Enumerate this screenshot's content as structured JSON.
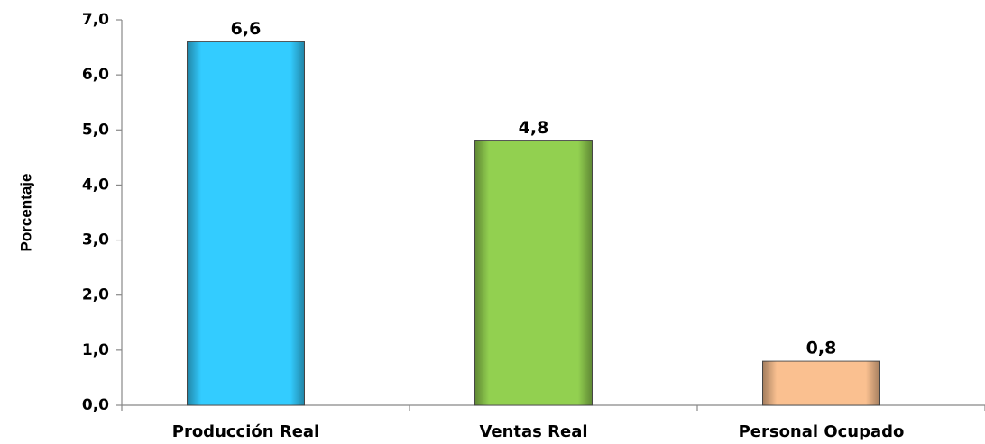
{
  "chart_data": {
    "type": "bar",
    "y_label": "Porcentaje",
    "categories": [
      "Producción Real",
      "Ventas Real",
      "Personal Ocupado"
    ],
    "values": [
      6.6,
      4.8,
      0.8
    ],
    "value_labels": [
      "6,6",
      "4,8",
      "0,8"
    ],
    "colors": [
      "#33ccff",
      "#92d050",
      "#fac090"
    ],
    "ylim": [
      0,
      7
    ],
    "yticks": [
      {
        "value": 0,
        "label": "0,0"
      },
      {
        "value": 1,
        "label": "1,0"
      },
      {
        "value": 2,
        "label": "2,0"
      },
      {
        "value": 3,
        "label": "3,0"
      },
      {
        "value": 4,
        "label": "4,0"
      },
      {
        "value": 5,
        "label": "5,0"
      },
      {
        "value": 6,
        "label": "6,0"
      },
      {
        "value": 7,
        "label": "7,0"
      }
    ],
    "grid": false
  }
}
